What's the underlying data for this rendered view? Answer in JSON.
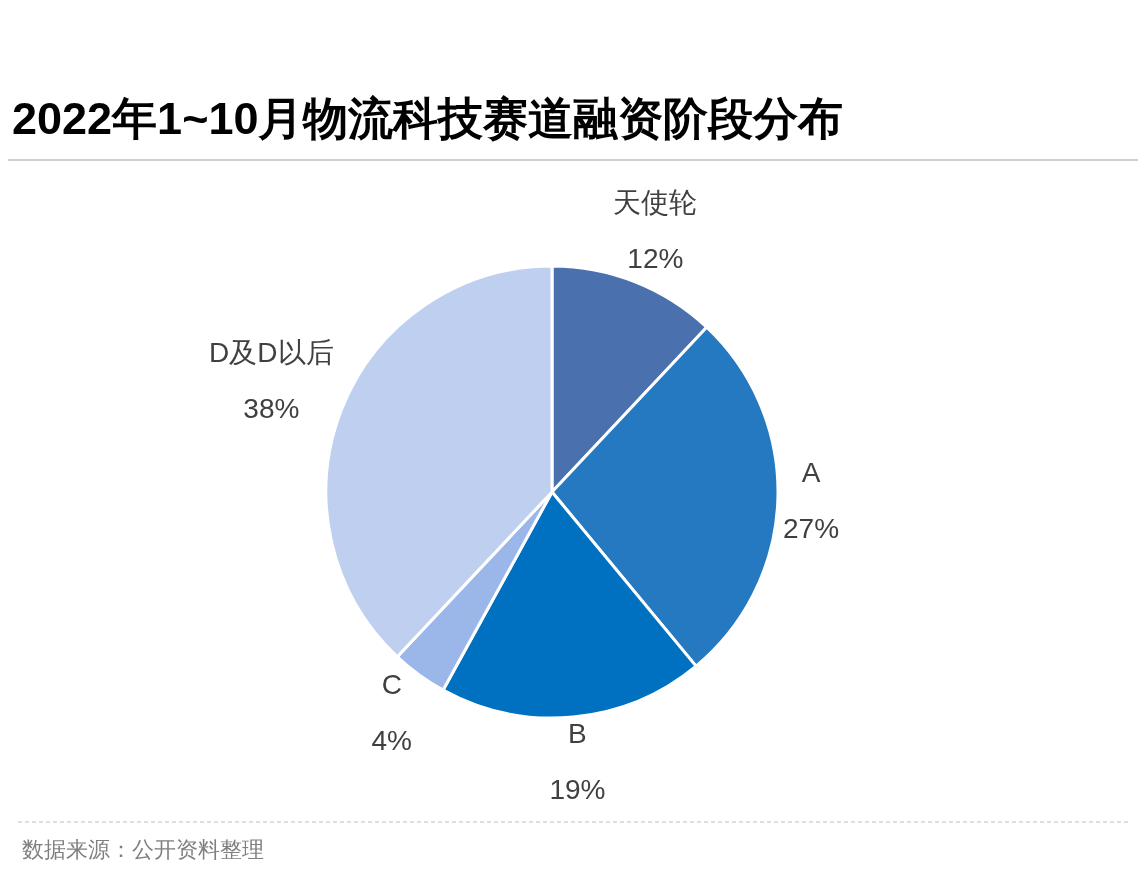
{
  "chart_data": {
    "type": "pie",
    "title": "2022年1~10月物流科技赛道融资阶段分布",
    "categories": [
      "天使轮",
      "A",
      "B",
      "C",
      "D及D以后"
    ],
    "values": [
      12,
      27,
      19,
      4,
      38
    ],
    "value_labels": [
      "12%",
      "27%",
      "19%",
      "4%",
      "38%"
    ],
    "colors": [
      "#4a70ad",
      "#2479c1",
      "#0070c0",
      "#9bb6e9",
      "#bfcff0"
    ],
    "annotations": [
      "数据来源：公开资料整理"
    ]
  }
}
